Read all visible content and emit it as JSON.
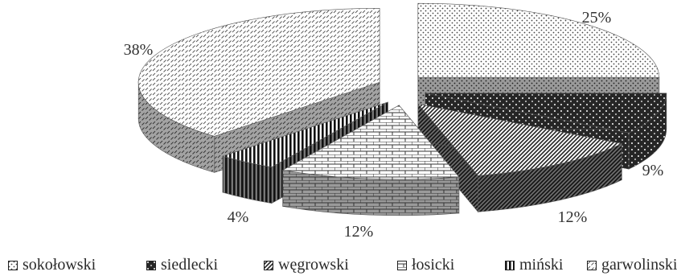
{
  "chart_data": {
    "type": "pie",
    "title": "",
    "style": "3d-exploded",
    "slices": [
      {
        "label": "sokołowski",
        "value": 25,
        "display": "25%",
        "color": "#dcdcdc",
        "pattern": "dots"
      },
      {
        "label": "siedlecki",
        "value": 9,
        "display": "9%",
        "color": "#333333",
        "pattern": "dark-dots"
      },
      {
        "label": "węgrowski",
        "value": 12,
        "display": "12%",
        "color": "#555555",
        "pattern": "diagonal"
      },
      {
        "label": "łosicki",
        "value": 12,
        "display": "12%",
        "color": "#888888",
        "pattern": "bricks"
      },
      {
        "label": "miński",
        "value": 4,
        "display": "4%",
        "color": "#222222",
        "pattern": "vertical"
      },
      {
        "label": "garwolinski",
        "value": 38,
        "display": "38%",
        "color": "#bbbbbb",
        "pattern": "dashes"
      }
    ],
    "legend": {
      "position": "bottom",
      "items": [
        "sokołowski",
        "siedlecki",
        "węgrowski",
        "łosicki",
        "miński",
        "garwolinski"
      ]
    }
  }
}
